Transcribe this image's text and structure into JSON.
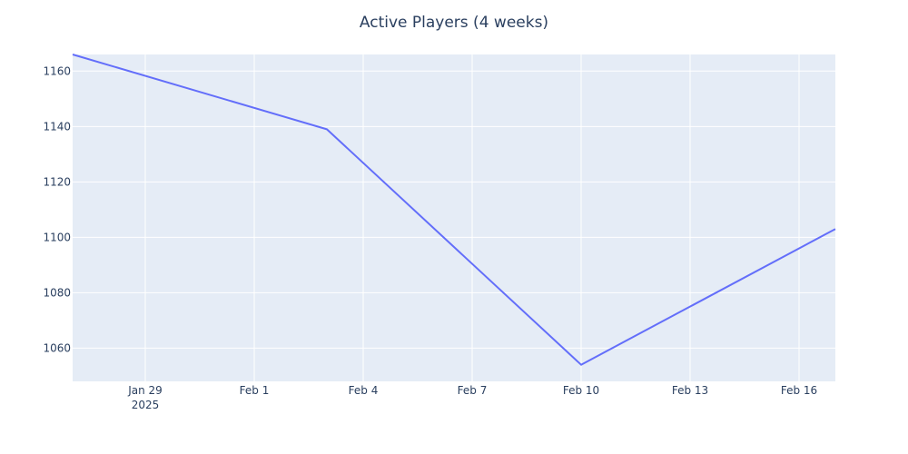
{
  "chart_data": {
    "type": "line",
    "title": "Active Players (4 weeks)",
    "xlabel": "",
    "ylabel": "",
    "x": [
      "2025-01-27",
      "2025-02-03",
      "2025-02-10",
      "2025-02-17"
    ],
    "series": [
      {
        "values": [
          1166,
          1139,
          1054,
          1103
        ],
        "color": "#636efa"
      }
    ],
    "xlim": [
      "2025-01-27",
      "2025-02-17"
    ],
    "ylim": [
      1048,
      1166
    ],
    "x_ticks": [
      {
        "date": "2025-01-29",
        "label": "Jan 29",
        "sublabel": "2025"
      },
      {
        "date": "2025-02-01",
        "label": "Feb 1",
        "sublabel": ""
      },
      {
        "date": "2025-02-04",
        "label": "Feb 4",
        "sublabel": ""
      },
      {
        "date": "2025-02-07",
        "label": "Feb 7",
        "sublabel": ""
      },
      {
        "date": "2025-02-10",
        "label": "Feb 10",
        "sublabel": ""
      },
      {
        "date": "2025-02-13",
        "label": "Feb 13",
        "sublabel": ""
      },
      {
        "date": "2025-02-16",
        "label": "Feb 16",
        "sublabel": ""
      }
    ],
    "y_ticks": [
      1060,
      1080,
      1100,
      1120,
      1140,
      1160
    ],
    "grid": true,
    "colors": {
      "plot_bg": "#e5ecf6",
      "grid": "#ffffff",
      "text": "#2a3f5f"
    }
  }
}
